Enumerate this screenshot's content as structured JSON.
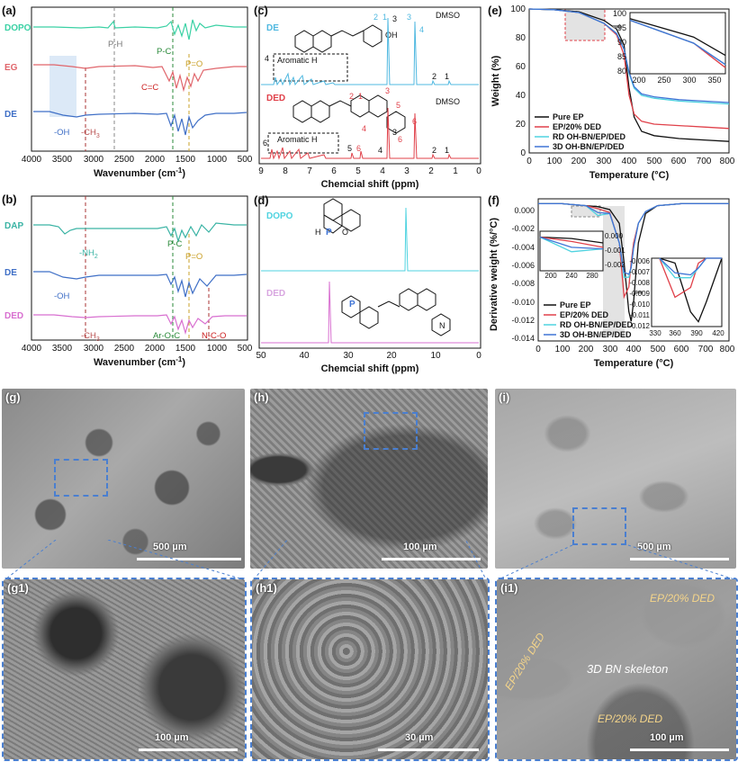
{
  "panel_a": {
    "label": "(a)",
    "series": [
      "DOPO",
      "EG",
      "DE"
    ],
    "colors": [
      "#3ad1a4",
      "#e0656b",
      "#3f6fc6"
    ],
    "annotations": [
      "P-H",
      "P-C",
      "P=O",
      "C=C",
      "-OH",
      "-CH",
      "3"
    ],
    "x_ticks": [
      "4000",
      "3500",
      "3000",
      "2500",
      "2000",
      "1500",
      "1000",
      "500"
    ],
    "x_label": "Wavenumber (cm",
    "x_label_sup": "-1",
    "x_label_end": ")"
  },
  "panel_b": {
    "label": "(b)",
    "series": [
      "DAP",
      "DE",
      "DED"
    ],
    "colors": [
      "#3ab3a4",
      "#3f6fc6",
      "#d86fd0"
    ],
    "annotations": [
      "-NH",
      "2",
      "P-C",
      "P=O",
      "-OH",
      "-CH",
      "3",
      "Ar-O-C",
      "N-C-O"
    ],
    "x_ticks": [
      "4000",
      "3500",
      "3000",
      "2500",
      "2000",
      "1500",
      "1000",
      "500"
    ],
    "x_label": "Wavenumber (cm",
    "x_label_sup": "-1",
    "x_label_end": ")"
  },
  "panel_c": {
    "label": "(c)",
    "series": [
      "DE",
      "DED"
    ],
    "solvent": "DMSO",
    "box_label": "Aromatic H",
    "de_peaks": [
      "1",
      "2",
      "3",
      "4"
    ],
    "de_struct_nums": [
      "2",
      "1",
      "3",
      "4"
    ],
    "de_struct_oh": "OH",
    "ded_peaks": [
      "1",
      "2",
      "3",
      "4",
      "5",
      "6"
    ],
    "ded_struct_nums": [
      "2",
      "1",
      "3",
      "4",
      "5",
      "6",
      "6"
    ],
    "x_ticks": [
      "9",
      "8",
      "7",
      "6",
      "5",
      "4",
      "3",
      "2",
      "1",
      "0"
    ],
    "x_label": "Chemcial shift (ppm)"
  },
  "panel_d": {
    "label": "(d)",
    "series": [
      "DOPO",
      "DED"
    ],
    "atom_p": "P",
    "atom_o": "O",
    "atom_h": "H",
    "atom_n": "N",
    "x_ticks": [
      "50",
      "40",
      "30",
      "20",
      "10",
      "0"
    ],
    "x_label": "Chemcial shift (ppm)"
  },
  "panel_e": {
    "label": "(e)",
    "y_label": "Weight (%)",
    "x_label": "Temperature (°C)",
    "x_ticks": [
      "0",
      "100",
      "200",
      "300",
      "400",
      "500",
      "600",
      "700",
      "800"
    ],
    "y_ticks": [
      "0",
      "20",
      "40",
      "60",
      "80",
      "100"
    ],
    "inset_x_ticks": [
      "200",
      "250",
      "300",
      "350"
    ],
    "inset_y_ticks": [
      "80",
      "85",
      "90",
      "95",
      "100"
    ],
    "legend": [
      "Pure EP",
      "EP/20% DED",
      "RD OH-BN/EP/DED",
      "3D OH-BN/EP/DED"
    ],
    "colors": [
      "#111111",
      "#e0414a",
      "#4fd3e0",
      "#3f74d6"
    ]
  },
  "panel_f": {
    "label": "(f)",
    "y_label": "Derivative weight (%/°C)",
    "x_label": "Temperature (°C)",
    "x_ticks": [
      "0",
      "100",
      "200",
      "300",
      "400",
      "500",
      "600",
      "700",
      "800"
    ],
    "y_ticks": [
      "0.000",
      "-0.002",
      "-0.004",
      "-0.006",
      "-0.008",
      "-0.010",
      "-0.012",
      "-0.014"
    ],
    "inset1_x_ticks": [
      "200",
      "240",
      "280"
    ],
    "inset1_y_ticks": [
      "0.000",
      "-0.001",
      "-0.002"
    ],
    "inset2_x_ticks": [
      "330",
      "360",
      "390",
      "420"
    ],
    "inset2_y_ticks": [
      "-0.006",
      "-0.007",
      "-0.008",
      "-0.009",
      "-0.010",
      "-0.011",
      "-0.012"
    ],
    "legend": [
      "Pure EP",
      "EP/20% DED",
      "RD OH-BN/EP/DED",
      "3D OH-BN/EP/DED"
    ],
    "colors": [
      "#111111",
      "#e0414a",
      "#4fd3e0",
      "#3f74d6"
    ]
  },
  "sem": {
    "g": {
      "label": "(g)",
      "scale": "500 µm"
    },
    "h": {
      "label": "(h)",
      "scale": "100 µm"
    },
    "i": {
      "label": "(i)",
      "scale": "500 µm"
    },
    "g1": {
      "label": "(g1)",
      "scale": "100 µm"
    },
    "h1": {
      "label": "(h1)",
      "scale": "30 µm"
    },
    "i1": {
      "label": "(i1)",
      "scale": "100 µm",
      "texts": [
        "EP/20% DED",
        "EP/20% DED",
        "3D BN skeleton",
        "EP/20% DED"
      ]
    }
  },
  "chart_data": [
    {
      "type": "line",
      "title": "",
      "panel": "(e)",
      "xlabel": "Temperature (°C)",
      "ylabel": "Weight (%)",
      "xlim": [
        0,
        800
      ],
      "ylim": [
        0,
        100
      ],
      "x": [
        0,
        100,
        200,
        300,
        350,
        380,
        400,
        420,
        450,
        500,
        600,
        700,
        800
      ],
      "series": [
        {
          "name": "Pure EP",
          "values": [
            100,
            99.5,
            98,
            92,
            86,
            75,
            45,
            25,
            15,
            12,
            10,
            9,
            8
          ]
        },
        {
          "name": "EP/20% DED",
          "values": [
            100,
            99.5,
            97.5,
            90,
            82,
            68,
            40,
            27,
            22,
            20,
            19,
            18,
            17
          ]
        },
        {
          "name": "RD OH-BN/EP/DED",
          "values": [
            100,
            99.5,
            97.5,
            90,
            83,
            72,
            55,
            45,
            40,
            38,
            36,
            35,
            34
          ]
        },
        {
          "name": "3D OH-BN/EP/DED",
          "values": [
            100,
            99.5,
            97.5,
            90,
            83,
            72,
            56,
            46,
            41,
            39,
            37,
            36,
            35
          ]
        }
      ]
    },
    {
      "type": "line",
      "title": "",
      "panel": "(f)",
      "xlabel": "Temperature (°C)",
      "ylabel": "Derivative weight (%/°C)",
      "xlim": [
        0,
        800
      ],
      "ylim": [
        -0.014,
        0.0005
      ],
      "x": [
        0,
        100,
        200,
        250,
        300,
        340,
        360,
        380,
        390,
        400,
        420,
        450,
        500,
        600,
        700,
        800
      ],
      "series": [
        {
          "name": "Pure EP",
          "values": [
            0,
            0,
            -0.0002,
            -0.0003,
            -0.0006,
            -0.002,
            -0.006,
            -0.011,
            -0.012,
            -0.01,
            -0.004,
            -0.001,
            -0.0002,
            0,
            0,
            0
          ]
        },
        {
          "name": "EP/20% DED",
          "values": [
            0,
            0,
            -0.0002,
            -0.0005,
            -0.0009,
            -0.004,
            -0.0095,
            -0.0085,
            -0.006,
            -0.004,
            -0.002,
            -0.0008,
            -0.0002,
            0,
            0,
            0
          ]
        },
        {
          "name": "RD OH-BN/EP/DED",
          "values": [
            0,
            0,
            -0.0002,
            -0.0012,
            -0.001,
            -0.004,
            -0.0075,
            -0.0075,
            -0.0065,
            -0.0045,
            -0.002,
            -0.0008,
            -0.0002,
            0,
            0,
            0
          ]
        },
        {
          "name": "3D OH-BN/EP/DED",
          "values": [
            0,
            0,
            -0.0002,
            -0.0009,
            -0.001,
            -0.004,
            -0.007,
            -0.0072,
            -0.0065,
            -0.0045,
            -0.002,
            -0.0008,
            -0.0002,
            0,
            0,
            0
          ]
        }
      ]
    }
  ]
}
